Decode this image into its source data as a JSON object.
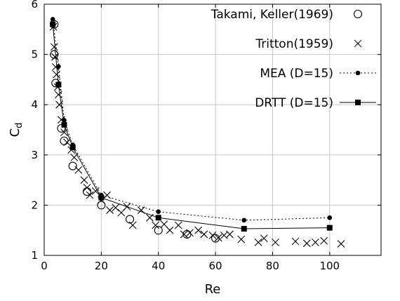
{
  "chart_data": {
    "type": "scatter",
    "xlabel": "Re",
    "ylabel": "C",
    "ylabel_sub": "d",
    "xlim": [
      0,
      118
    ],
    "ylim": [
      1,
      6
    ],
    "xticks": [
      0,
      20,
      40,
      60,
      80,
      100
    ],
    "yticks": [
      1,
      2,
      3,
      4,
      5,
      6
    ],
    "grid": true,
    "legend_position": "top-right",
    "series": [
      {
        "name": "Takami, Keller(1969)",
        "marker": "circle-open",
        "line": "none",
        "x": [
          3.5,
          3.5,
          4,
          6,
          7,
          10,
          15,
          20,
          30,
          40,
          50,
          60
        ],
        "y": [
          5.6,
          5.0,
          4.43,
          3.53,
          3.28,
          2.78,
          2.27,
          2.0,
          1.72,
          1.5,
          1.42,
          1.34
        ]
      },
      {
        "name": "Tritton(1959)",
        "marker": "cross",
        "line": "none",
        "x": [
          3.2,
          3.5,
          3.8,
          4.0,
          4.3,
          4.7,
          5.0,
          5.3,
          6.0,
          7.0,
          8.0,
          9.5,
          10.5,
          12,
          14,
          15,
          16,
          18,
          20,
          22,
          23,
          25,
          27,
          29,
          31,
          34,
          37,
          39,
          42,
          44,
          47,
          49,
          51,
          54,
          56,
          59,
          61,
          63,
          65,
          69,
          75,
          77,
          81,
          88,
          92,
          95,
          98,
          104
        ],
        "y": [
          5.55,
          5.15,
          4.95,
          4.75,
          4.6,
          4.35,
          4.2,
          4.0,
          3.7,
          3.45,
          3.25,
          3.1,
          2.95,
          2.7,
          2.5,
          2.35,
          2.2,
          2.28,
          2.1,
          2.2,
          1.9,
          1.95,
          1.85,
          1.97,
          1.6,
          1.9,
          1.75,
          1.6,
          1.62,
          1.5,
          1.6,
          1.42,
          1.45,
          1.5,
          1.42,
          1.4,
          1.35,
          1.4,
          1.42,
          1.32,
          1.26,
          1.34,
          1.26,
          1.28,
          1.24,
          1.26,
          1.29,
          1.23
        ]
      },
      {
        "name": "MEA (D=15)",
        "marker": "dot",
        "line": "dotted",
        "x": [
          3,
          5,
          7,
          10,
          20,
          40,
          70,
          100
        ],
        "y": [
          5.7,
          4.76,
          3.69,
          3.2,
          2.2,
          1.87,
          1.7,
          1.75
        ]
      },
      {
        "name": "DRTT (D=15)",
        "marker": "square",
        "line": "solid",
        "x": [
          3,
          5,
          7,
          10,
          20,
          40,
          70,
          100
        ],
        "y": [
          5.6,
          4.4,
          3.6,
          3.15,
          2.15,
          1.75,
          1.53,
          1.55
        ]
      }
    ]
  }
}
